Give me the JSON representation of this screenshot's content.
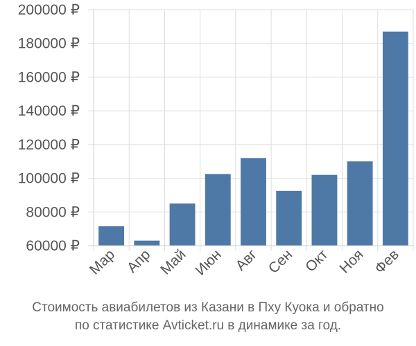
{
  "chart_data": {
    "type": "bar",
    "categories": [
      "Мар",
      "Апр",
      "Май",
      "Июн",
      "Авг",
      "Сен",
      "Окт",
      "Ноя",
      "Фев"
    ],
    "values": [
      71500,
      63000,
      85000,
      102500,
      112000,
      92500,
      102000,
      110000,
      187000
    ],
    "ylim": [
      60000,
      200000
    ],
    "yticks": [
      "60000 ₽",
      "80000 ₽",
      "100000 ₽",
      "120000 ₽",
      "140000 ₽",
      "160000 ₽",
      "180000 ₽",
      "200000 ₽"
    ],
    "ytick_values": [
      60000,
      80000,
      100000,
      120000,
      140000,
      160000,
      180000,
      200000
    ],
    "grid": true,
    "bar_color": "#4e79a7",
    "grid_color": "#dddddd",
    "text_color": "#555555"
  },
  "caption": {
    "line1": "Стоимость авиабилетов из Казани в Пху Куока и обратно",
    "line2": "по статистике Avticket.ru в динамике за год."
  }
}
